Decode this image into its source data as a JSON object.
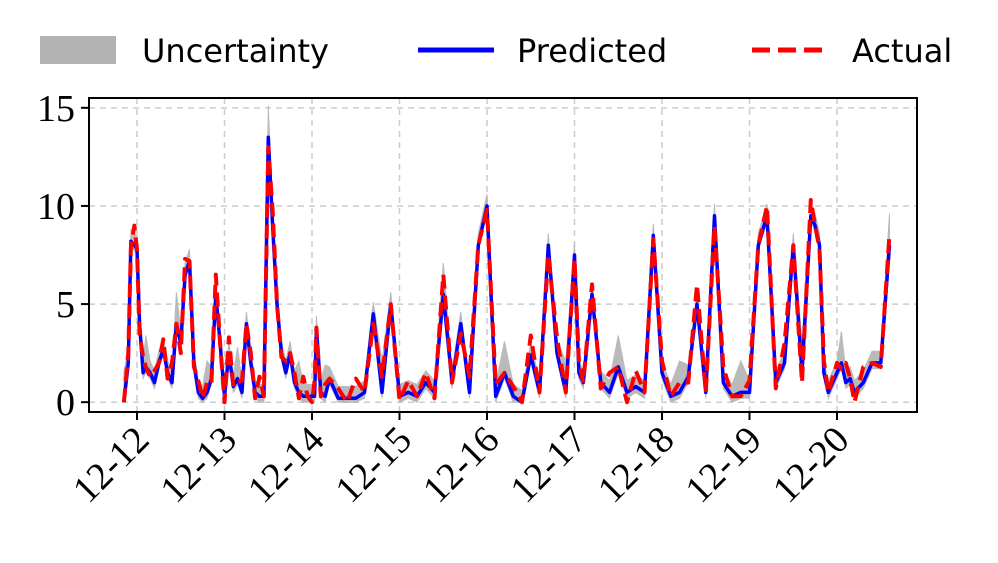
{
  "chart_data": {
    "type": "line",
    "title": "",
    "xlabel": "",
    "ylabel": "",
    "grid": true,
    "legend_placement": "top",
    "ylim": [
      -0.5,
      15.5
    ],
    "yticks": [
      0,
      5,
      10,
      15
    ],
    "xticks": [
      "12-12",
      "12-13",
      "12-14",
      "12-15",
      "12-16",
      "12-17",
      "12-18",
      "12-19",
      "12-20"
    ],
    "colors": {
      "uncertainty": "#b3b3b3",
      "predicted": "#0000ff",
      "actual": "#ff0000"
    },
    "series": [
      {
        "name": "Uncertainty",
        "style": "band",
        "note": "upper bound shown as grey band above predicted"
      },
      {
        "name": "Predicted",
        "style": "solid"
      },
      {
        "name": "Actual",
        "style": "dashed"
      }
    ],
    "x": [
      -0.15,
      -0.1,
      -0.07,
      -0.03,
      0,
      0.03,
      0.07,
      0.1,
      0.15,
      0.2,
      0.25,
      0.3,
      0.35,
      0.4,
      0.45,
      0.5,
      0.55,
      0.6,
      0.65,
      0.7,
      0.75,
      0.8,
      0.85,
      0.9,
      0.95,
      1.0,
      1.05,
      1.1,
      1.15,
      1.2,
      1.25,
      1.3,
      1.35,
      1.4,
      1.45,
      1.5,
      1.55,
      1.6,
      1.65,
      1.7,
      1.75,
      1.8,
      1.85,
      1.9,
      1.95,
      2.0,
      2.03,
      2.05,
      2.1,
      2.15,
      2.2,
      2.3,
      2.4,
      2.5,
      2.6,
      2.7,
      2.8,
      2.9,
      3.0,
      3.1,
      3.2,
      3.3,
      3.4,
      3.5,
      3.6,
      3.7,
      3.8,
      3.9,
      4.0,
      4.1,
      4.2,
      4.3,
      4.4,
      4.5,
      4.6,
      4.7,
      4.8,
      4.9,
      5.0,
      5.05,
      5.1,
      5.2,
      5.3,
      5.4,
      5.5,
      5.6,
      5.7,
      5.8,
      5.9,
      6.0,
      6.1,
      6.2,
      6.3,
      6.4,
      6.5,
      6.6,
      6.7,
      6.8,
      6.9,
      7.0,
      7.1,
      7.2,
      7.3,
      7.4,
      7.5,
      7.6,
      7.7,
      7.75,
      7.8,
      7.85,
      7.9,
      8.0,
      8.05,
      8.1,
      8.15,
      8.2,
      8.3,
      8.4,
      8.5,
      8.6
    ],
    "predicted": [
      0,
      2,
      8.2,
      8,
      7.8,
      4,
      1.5,
      1.8,
      1.5,
      1,
      2,
      2.7,
      1.5,
      1,
      4,
      3,
      6.5,
      7.2,
      2,
      0.5,
      0.2,
      0.5,
      1.2,
      5.5,
      3,
      0.3,
      2.5,
      0.8,
      1.2,
      0.5,
      4,
      2,
      0.5,
      0.3,
      0.3,
      13.5,
      9,
      5,
      2.5,
      1.5,
      2.5,
      1,
      0.5,
      0.3,
      0.3,
      0.3,
      0.3,
      3.8,
      0.5,
      0.3,
      1.2,
      0.2,
      0.2,
      0.2,
      0.5,
      4.5,
      0.5,
      5,
      0.3,
      0.5,
      0.3,
      1,
      0.5,
      5.5,
      1,
      4,
      0.5,
      8,
      10,
      0.3,
      1.5,
      0.3,
      0,
      2.4,
      0.5,
      8,
      2.5,
      0.5,
      7.5,
      1.5,
      1,
      5.5,
      1,
      0.5,
      1.8,
      0.5,
      0.8,
      0.5,
      8.5,
      1.5,
      0.3,
      0.5,
      1.3,
      5,
      0.5,
      9.5,
      1,
      0.3,
      0.5,
      0.5,
      8,
      9.5,
      1,
      2,
      8,
      1.5,
      9.5,
      9,
      8,
      1.5,
      0.5,
      1.5,
      2,
      1,
      1.2,
      0.5,
      1,
      2,
      2,
      8
    ]
  }
}
